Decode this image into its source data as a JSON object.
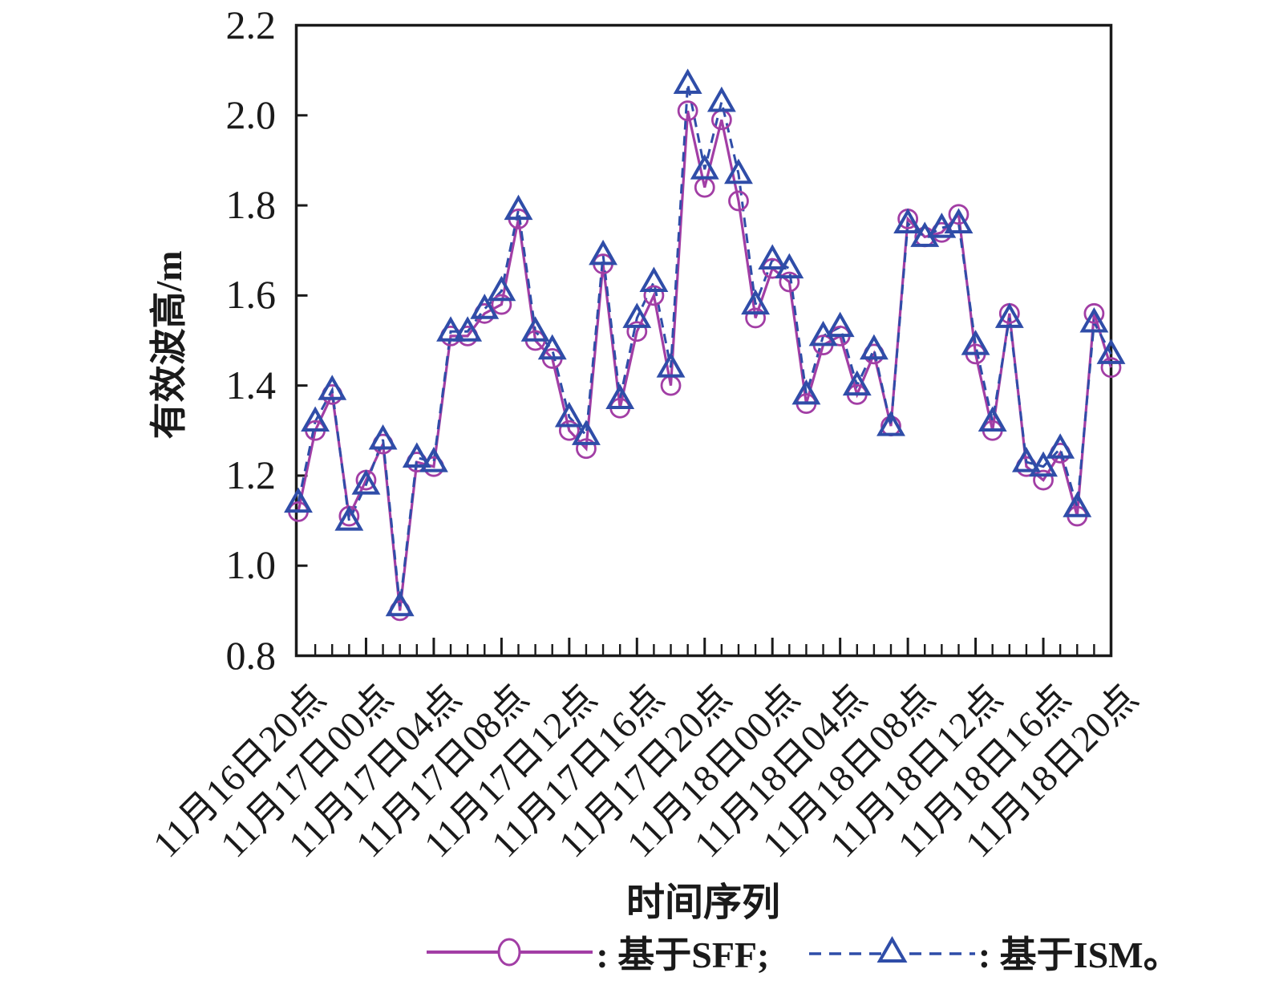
{
  "legend": {
    "sff_label": ": 基于SFF; ",
    "ism_label": ": 基于ISM。"
  },
  "chart_data": {
    "type": "line",
    "title": "",
    "xlabel": "时间序列",
    "ylabel": "有效波高/m",
    "ylim": [
      0.8,
      2.2
    ],
    "y_ticks": [
      2.2,
      2.0,
      1.8,
      1.6,
      1.4,
      1.2,
      1.0,
      0.8
    ],
    "x_major_tick_labels": [
      "11月16日20点",
      "11月17日00点",
      "11月17日04点",
      "11月17日08点",
      "11月17日12点",
      "11月17日16点",
      "11月17日20点",
      "11月18日00点",
      "11月18日04点",
      "11月18日08点",
      "11月18日12点",
      "11月18日16点",
      "11月18日20点"
    ],
    "minor_ticks_per_major": 4,
    "grid": false,
    "legend_position": "bottom",
    "axis_color": "#1a1a1a",
    "series": [
      {
        "name": "基于SFF",
        "marker": "circle",
        "line_style": "solid",
        "color": "#A23EA5",
        "values": [
          1.12,
          1.3,
          1.38,
          1.11,
          1.19,
          1.27,
          0.9,
          1.23,
          1.22,
          1.51,
          1.51,
          1.56,
          1.58,
          1.77,
          1.5,
          1.46,
          1.3,
          1.26,
          1.67,
          1.35,
          1.52,
          1.6,
          1.4,
          2.01,
          1.84,
          1.99,
          1.81,
          1.55,
          1.66,
          1.63,
          1.36,
          1.49,
          1.51,
          1.38,
          1.47,
          1.31,
          1.77,
          1.73,
          1.74,
          1.78,
          1.47,
          1.3,
          1.56,
          1.22,
          1.19,
          1.25,
          1.11,
          1.56,
          1.44
        ]
      },
      {
        "name": "基于ISM",
        "marker": "triangle",
        "line_style": "dashed",
        "color": "#2F4DA8",
        "values": [
          1.14,
          1.32,
          1.39,
          1.1,
          1.18,
          1.28,
          0.91,
          1.24,
          1.23,
          1.52,
          1.52,
          1.57,
          1.61,
          1.79,
          1.52,
          1.48,
          1.33,
          1.29,
          1.69,
          1.37,
          1.55,
          1.63,
          1.44,
          2.07,
          1.88,
          2.03,
          1.87,
          1.58,
          1.68,
          1.66,
          1.38,
          1.51,
          1.53,
          1.4,
          1.48,
          1.31,
          1.76,
          1.73,
          1.75,
          1.76,
          1.49,
          1.32,
          1.55,
          1.23,
          1.22,
          1.26,
          1.13,
          1.54,
          1.47
        ]
      }
    ]
  }
}
